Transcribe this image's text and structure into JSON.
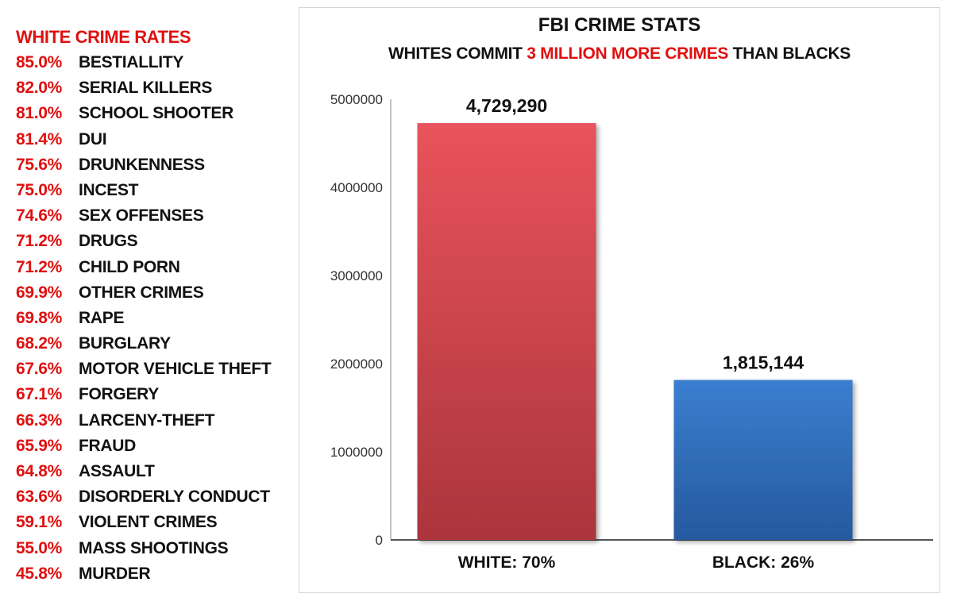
{
  "left_list": {
    "title": "WHITE CRIME RATES",
    "items": [
      {
        "pct": "85.0%",
        "label": "BESTIALLITY"
      },
      {
        "pct": "82.0%",
        "label": "SERIAL KILLERS"
      },
      {
        "pct": "81.0%",
        "label": "SCHOOL SHOOTER"
      },
      {
        "pct": "81.4%",
        "label": "DUI"
      },
      {
        "pct": "75.6%",
        "label": "DRUNKENNESS"
      },
      {
        "pct": "75.0%",
        "label": "INCEST"
      },
      {
        "pct": "74.6%",
        "label": "SEX OFFENSES"
      },
      {
        "pct": "71.2%",
        "label": "DRUGS"
      },
      {
        "pct": "71.2%",
        "label": "CHILD PORN"
      },
      {
        "pct": "69.9%",
        "label": "OTHER CRIMES"
      },
      {
        "pct": "69.8%",
        "label": "RAPE"
      },
      {
        "pct": "68.2%",
        "label": "BURGLARY"
      },
      {
        "pct": "67.6%",
        "label": "MOTOR VEHICLE THEFT"
      },
      {
        "pct": "67.1%",
        "label": "FORGERY"
      },
      {
        "pct": "66.3%",
        "label": "LARCENY-THEFT"
      },
      {
        "pct": "65.9%",
        "label": "FRAUD"
      },
      {
        "pct": "64.8%",
        "label": "ASSAULT"
      },
      {
        "pct": "63.6%",
        "label": "DISORDERLY CONDUCT"
      },
      {
        "pct": "59.1%",
        "label": "VIOLENT CRIMES"
      },
      {
        "pct": "55.0%",
        "label": "MASS SHOOTINGS"
      },
      {
        "pct": "45.8%",
        "label": "MURDER"
      }
    ],
    "pct_color": "#e01010"
  },
  "chart_data": {
    "type": "bar",
    "title": "FBI CRIME STATS",
    "subtitle_parts": {
      "before": "WHITES COMMIT ",
      "highlight": "3 MILLION MORE CRIMES",
      "after": " THAN BLACKS"
    },
    "categories": [
      "WHITE: 70%",
      "BLACK: 26%"
    ],
    "values": [
      4729290,
      1815144
    ],
    "value_labels": [
      "4,729,290",
      "1,815,144"
    ],
    "colors": [
      "#d9434b",
      "#2f6fbf"
    ],
    "ylim": [
      0,
      5000000
    ],
    "yticks": [
      0,
      1000000,
      2000000,
      3000000,
      4000000,
      5000000
    ],
    "grid": false,
    "xlabel": "",
    "ylabel": ""
  }
}
